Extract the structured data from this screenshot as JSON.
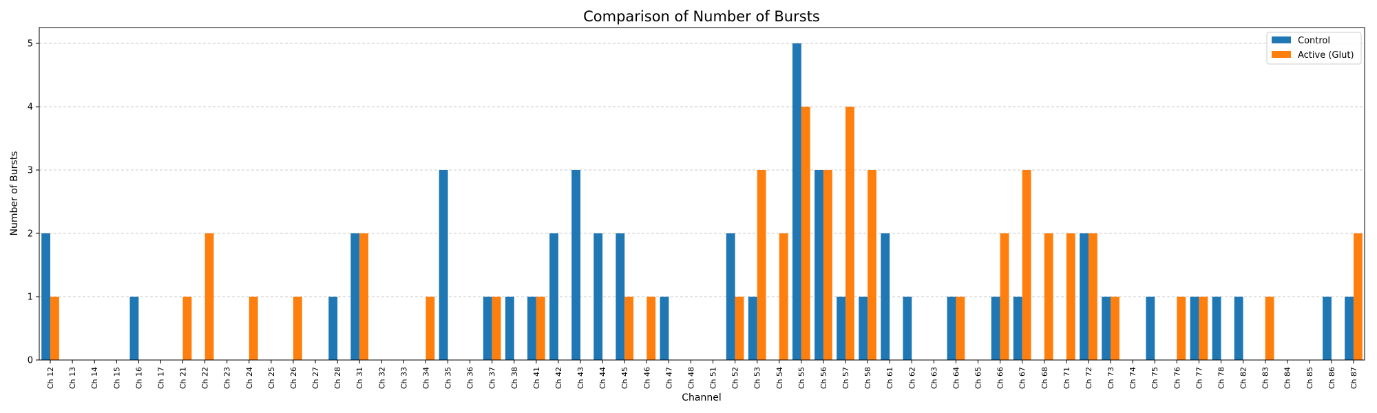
{
  "chart_data": {
    "type": "bar",
    "title": "Comparison of Number of Bursts",
    "xlabel": "Channel",
    "ylabel": "Number of Bursts",
    "ylim": [
      0,
      5.25
    ],
    "yticks": [
      0,
      1,
      2,
      3,
      4,
      5
    ],
    "grid": "y-dashed",
    "legend_position": "top-right",
    "categories": [
      "Ch 12",
      "Ch 13",
      "Ch 14",
      "Ch 15",
      "Ch 16",
      "Ch 17",
      "Ch 21",
      "Ch 22",
      "Ch 23",
      "Ch 24",
      "Ch 25",
      "Ch 26",
      "Ch 27",
      "Ch 28",
      "Ch 31",
      "Ch 32",
      "Ch 33",
      "Ch 34",
      "Ch 35",
      "Ch 36",
      "Ch 37",
      "Ch 38",
      "Ch 41",
      "Ch 42",
      "Ch 43",
      "Ch 44",
      "Ch 45",
      "Ch 46",
      "Ch 47",
      "Ch 48",
      "Ch 51",
      "Ch 52",
      "Ch 53",
      "Ch 54",
      "Ch 55",
      "Ch 56",
      "Ch 57",
      "Ch 58",
      "Ch 61",
      "Ch 62",
      "Ch 63",
      "Ch 64",
      "Ch 65",
      "Ch 66",
      "Ch 67",
      "Ch 68",
      "Ch 71",
      "Ch 72",
      "Ch 73",
      "Ch 74",
      "Ch 75",
      "Ch 76",
      "Ch 77",
      "Ch 78",
      "Ch 82",
      "Ch 83",
      "Ch 84",
      "Ch 85",
      "Ch 86",
      "Ch 87"
    ],
    "series": [
      {
        "name": "Control",
        "color": "#1f77b4",
        "values": [
          2,
          0,
          0,
          0,
          1,
          0,
          0,
          0,
          0,
          0,
          0,
          0,
          0,
          1,
          2,
          0,
          0,
          0,
          3,
          0,
          1,
          1,
          1,
          2,
          3,
          2,
          2,
          0,
          1,
          0,
          0,
          2,
          1,
          0,
          5,
          3,
          1,
          1,
          2,
          1,
          0,
          1,
          0,
          1,
          1,
          0,
          0,
          2,
          1,
          0,
          1,
          0,
          1,
          1,
          1,
          0,
          0,
          0,
          1,
          1
        ]
      },
      {
        "name": "Active (Glut)",
        "color": "#ff7f0e",
        "values": [
          1,
          0,
          0,
          0,
          0,
          0,
          1,
          2,
          0,
          1,
          0,
          1,
          0,
          0,
          2,
          0,
          0,
          1,
          0,
          0,
          1,
          0,
          1,
          0,
          0,
          0,
          1,
          1,
          0,
          0,
          0,
          1,
          3,
          2,
          4,
          3,
          4,
          3,
          0,
          0,
          0,
          1,
          0,
          2,
          3,
          2,
          2,
          2,
          1,
          0,
          0,
          1,
          1,
          0,
          0,
          1,
          0,
          0,
          0,
          2
        ]
      }
    ]
  }
}
